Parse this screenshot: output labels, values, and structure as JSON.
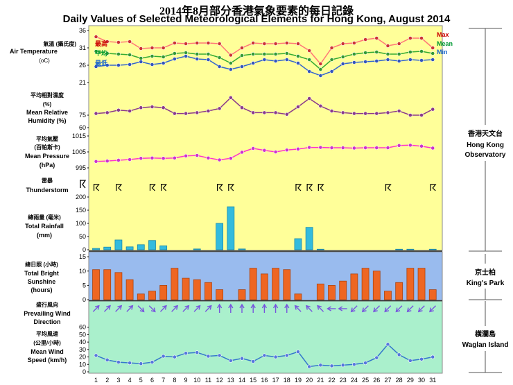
{
  "title_zh": "2014年8月部分香港氣象要素的每日記錄",
  "title_en": "Daily Values of Selected Meteorological Elements for Hong Kong, August 2014",
  "days": [
    1,
    2,
    3,
    4,
    5,
    6,
    7,
    8,
    9,
    10,
    11,
    12,
    13,
    14,
    15,
    16,
    17,
    18,
    19,
    20,
    21,
    22,
    23,
    24,
    25,
    26,
    27,
    28,
    29,
    30,
    31
  ],
  "stations": {
    "hko_zh": "香港天文台",
    "hko_en1": "Hong Kong",
    "hko_en2": "Observatory",
    "kp_zh": "京士柏",
    "kp_en": "King's Park",
    "wi_zh": "橫瀾島",
    "wi_en": "Waglan Island"
  },
  "panel_labels": {
    "temp_zh": "氣溫 (攝氏度)",
    "temp_en": "Air Temperature",
    "temp_unit": "(oC)",
    "rh_zh": "平均相對濕度",
    "rh_zh2": "(%)",
    "rh_en1": "Mean Relative",
    "rh_en2": "Humidity (%)",
    "p_zh": "平均氣壓",
    "p_zh2": "(百帕斯卡)",
    "p_en1": "Mean Pressure",
    "p_en2": "(hPa)",
    "ts_zh": "雷暴",
    "ts_en": "Thunderstorm",
    "rain_zh": "總雨量 (毫米)",
    "rain_en1": "Total Rainfall",
    "rain_en2": "(mm)",
    "sun_zh": "總日照 (小時)",
    "sun_en1": "Total Bright",
    "sun_en2": "Sunshine",
    "sun_en3": "(hours)",
    "wd_zh": "盛行風向",
    "wd_en1": "Prevailing Wind",
    "wd_en2": "Direction",
    "ws_zh1": "平均風速",
    "ws_zh2": "(公里/小時)",
    "ws_en1": "Mean Wind",
    "ws_en2": "Speed (km/h)"
  },
  "legend": {
    "max_zh": "最高",
    "mean_zh": "平均",
    "min_zh": "最低",
    "max_en": "Max",
    "mean_en": "Mean",
    "min_en": "Min"
  },
  "colors": {
    "hko_bg": "#ffff99",
    "kp_bg": "#99bbee",
    "wi_bg": "#aaf0cc",
    "max": "#cc0000",
    "mean": "#009933",
    "min": "#1a66cc",
    "line_max": "#ff7777",
    "line_mean": "#33aa33",
    "line_min": "#3366cc",
    "rh": "#8a3a8a",
    "pressure": "#ff33cc",
    "rain": "#33bbdd",
    "sun": "#ee6622",
    "wind": "#7755dd"
  },
  "chart_data": {
    "type": "multi-panel",
    "x_label_values": "day of month",
    "temperature": {
      "ylim": [
        21,
        36
      ],
      "yticks": [
        26,
        31,
        36
      ],
      "series": [
        {
          "name": "Max",
          "values": [
            34.2,
            32.8,
            32.6,
            32.8,
            30.8,
            31.0,
            31.0,
            32.4,
            32.2,
            32.4,
            32.4,
            32.2,
            28.9,
            31.0,
            32.4,
            32.2,
            32.2,
            32.4,
            32.2,
            30.2,
            26.4,
            31.0,
            32.2,
            32.4,
            33.4,
            33.8,
            31.6,
            32.2,
            33.8,
            33.8,
            31.0
          ]
        },
        {
          "name": "Mean",
          "values": [
            30.0,
            29.4,
            29.2,
            29.0,
            28.0,
            28.6,
            28.4,
            29.4,
            29.6,
            29.2,
            29.2,
            28.2,
            26.6,
            28.8,
            29.2,
            29.2,
            29.2,
            29.4,
            28.6,
            27.6,
            24.8,
            27.6,
            28.4,
            29.2,
            29.6,
            29.8,
            29.2,
            29.2,
            29.8,
            30.0,
            29.4
          ]
        },
        {
          "name": "Min",
          "values": [
            25.6,
            26.0,
            26.0,
            26.2,
            27.0,
            26.2,
            26.6,
            27.8,
            28.6,
            27.8,
            27.6,
            25.6,
            24.8,
            25.6,
            26.6,
            27.6,
            27.2,
            27.6,
            26.6,
            24.2,
            23.0,
            24.2,
            26.4,
            26.8,
            27.0,
            27.2,
            27.6,
            27.2,
            27.6,
            27.4,
            27.6
          ]
        }
      ]
    },
    "humidity": {
      "ylim": [
        60,
        90
      ],
      "yticks": [
        60,
        75
      ],
      "values": [
        77,
        78,
        81,
        80,
        84,
        85,
        84,
        77,
        77,
        78,
        80,
        83,
        96,
        84,
        78,
        78,
        78,
        76,
        85,
        95,
        86,
        80,
        78,
        77,
        77,
        77,
        78,
        80,
        75,
        75,
        82
      ]
    },
    "pressure": {
      "ylim": [
        995,
        1015
      ],
      "yticks": [
        995,
        1005,
        1015
      ],
      "values": [
        999.0,
        999.3,
        999.8,
        1000.2,
        1001.0,
        1001.2,
        1001.0,
        1001.2,
        1002.5,
        1002.8,
        1001.2,
        1000.0,
        1001.0,
        1004.8,
        1007.2,
        1006.0,
        1005.0,
        1006.2,
        1006.8,
        1007.8,
        1007.8,
        1007.6,
        1007.6,
        1007.4,
        1007.6,
        1007.6,
        1007.6,
        1009.0,
        1009.2,
        1008.6,
        1007.4
      ]
    },
    "thunderstorm_days": [
      1,
      3,
      6,
      7,
      12,
      13,
      19,
      20,
      21,
      27,
      31
    ],
    "rainfall": {
      "ylim": [
        0,
        200
      ],
      "yticks": [
        0,
        50,
        100,
        150,
        200
      ],
      "values": [
        5,
        10,
        37,
        11,
        19,
        35,
        15,
        0,
        0,
        3,
        0,
        100,
        163,
        3,
        0,
        0,
        0,
        0,
        42,
        85,
        2,
        0,
        0,
        0,
        0,
        0,
        0,
        2,
        2,
        0,
        2
      ]
    },
    "sunshine": {
      "ylim": [
        0,
        16
      ],
      "yticks": [
        0,
        5,
        10,
        15
      ],
      "values": [
        10.5,
        10.5,
        9.5,
        7.0,
        2.0,
        3.0,
        5.0,
        11.0,
        7.5,
        7.0,
        6.0,
        3.5,
        0,
        3.5,
        11.0,
        9.0,
        11.0,
        10.5,
        2.0,
        0,
        5.5,
        5.0,
        6.5,
        9.0,
        11.0,
        10.0,
        3.0,
        6.0,
        11.0,
        11.0,
        3.5
      ]
    },
    "wind_direction_deg": [
      225,
      225,
      225,
      225,
      315,
      315,
      225,
      225,
      225,
      225,
      225,
      180,
      180,
      180,
      180,
      180,
      180,
      180,
      135,
      135,
      135,
      90,
      90,
      45,
      45,
      45,
      45,
      45,
      45,
      45,
      45
    ],
    "wind_speed": {
      "ylim": [
        0,
        70
      ],
      "yticks": [
        0,
        10,
        20,
        30,
        40,
        50,
        60
      ],
      "values": [
        22,
        16,
        13,
        12,
        11,
        13,
        21,
        20,
        25,
        26,
        21,
        22,
        15,
        18,
        14,
        22,
        20,
        22,
        27,
        7,
        9,
        8,
        9,
        10,
        12,
        19,
        37,
        23,
        15,
        17,
        20
      ]
    }
  }
}
